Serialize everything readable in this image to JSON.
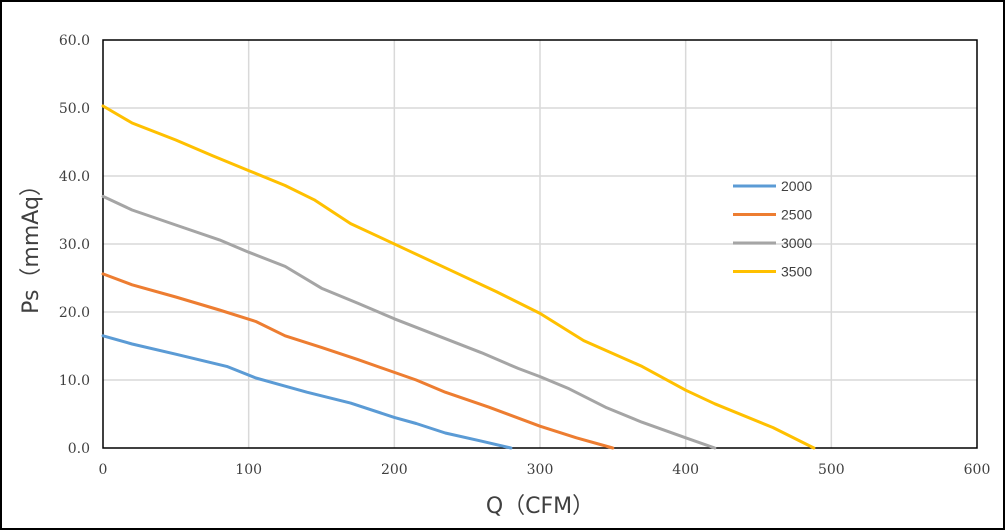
{
  "chart_data": {
    "type": "line",
    "title": "",
    "xlabel": "Q（CFM）",
    "ylabel": "Ps（mmAq）",
    "xlim": [
      0,
      600
    ],
    "ylim": [
      0,
      60
    ],
    "xticks": [
      "0",
      "100",
      "200",
      "300",
      "400",
      "500",
      "600"
    ],
    "yticks": [
      "0.0",
      "10.0",
      "20.0",
      "30.0",
      "40.0",
      "50.0",
      "60.0"
    ],
    "grid": true,
    "legend_placement": "right",
    "series": [
      {
        "name": "2000",
        "color": "#5B9BD5",
        "x": [
          0,
          20,
          50,
          85,
          105,
          140,
          170,
          200,
          215,
          235,
          260,
          280
        ],
        "y": [
          16.5,
          15.3,
          13.8,
          12,
          10.3,
          8.2,
          6.6,
          4.5,
          3.6,
          2.2,
          1,
          0
        ]
      },
      {
        "name": "2500",
        "color": "#ED7D31",
        "x": [
          0,
          20,
          50,
          80,
          105,
          125,
          150,
          175,
          215,
          235,
          265,
          300,
          325,
          350
        ],
        "y": [
          25.6,
          24,
          22.2,
          20.3,
          18.6,
          16.5,
          14.8,
          13,
          10,
          8.2,
          6,
          3.2,
          1.5,
          0
        ]
      },
      {
        "name": "3000",
        "color": "#A5A5A5",
        "x": [
          0,
          20,
          50,
          80,
          100,
          125,
          150,
          175,
          200,
          230,
          260,
          285,
          300,
          320,
          345,
          370,
          400,
          420
        ],
        "y": [
          37,
          35,
          32.8,
          30.6,
          28.8,
          26.7,
          23.5,
          21.3,
          19,
          16.5,
          14,
          11.7,
          10.5,
          8.7,
          6,
          3.8,
          1.5,
          0
        ]
      },
      {
        "name": "3500",
        "color": "#FFC000",
        "x": [
          0,
          20,
          50,
          75,
          100,
          125,
          145,
          170,
          190,
          210,
          240,
          270,
          300,
          330,
          370,
          400,
          420,
          460,
          488
        ],
        "y": [
          50.3,
          47.8,
          45.3,
          43,
          40.8,
          38.6,
          36.5,
          33,
          31,
          29,
          26,
          23,
          19.8,
          15.8,
          12,
          8.5,
          6.5,
          3,
          0
        ]
      }
    ]
  }
}
